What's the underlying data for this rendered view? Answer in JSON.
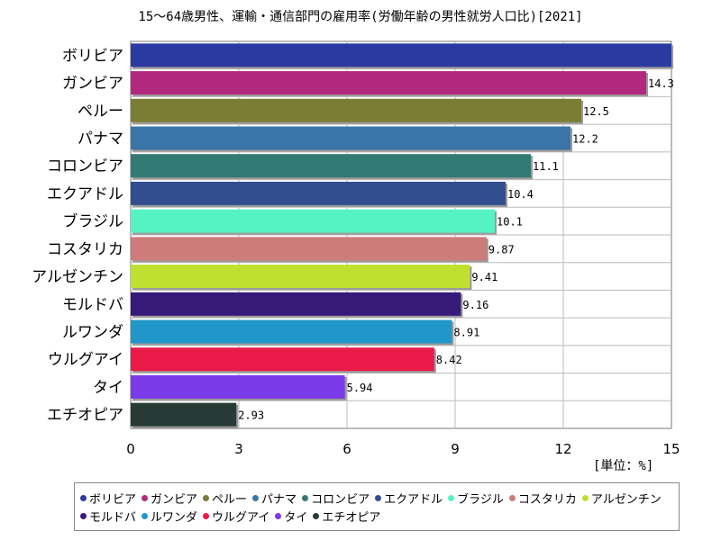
{
  "chart_data": {
    "type": "bar",
    "orientation": "horizontal",
    "title": "15～64歳男性、運輸・通信部門の雇用率(労働年齢の男性就労人口比)[2021]",
    "unit_label": "[単位：%]",
    "xlim": [
      0,
      15
    ],
    "x_ticks": [
      "0",
      "3",
      "6",
      "9",
      "12",
      "15"
    ],
    "grid": true,
    "legend_position": "bottom",
    "categories": [
      "ボリビア",
      "ガンビア",
      "ペルー",
      "パナマ",
      "コロンビア",
      "エクアドル",
      "ブラジル",
      "コスタリカ",
      "アルゼンチン",
      "モルドバ",
      "ルワンダ",
      "ウルグアイ",
      "タイ",
      "エチオピア"
    ],
    "values": [
      15.0,
      14.3,
      12.5,
      12.2,
      11.1,
      10.4,
      10.1,
      9.87,
      9.41,
      9.16,
      8.91,
      8.42,
      5.94,
      2.93
    ],
    "value_labels": [
      "",
      "14.3",
      "12.5",
      "12.2",
      "11.1",
      "10.4",
      "10.1",
      "9.87",
      "9.41",
      "9.16",
      "8.91",
      "8.42",
      "5.94",
      "2.93"
    ],
    "colors": [
      "#2b3aa0",
      "#b2287e",
      "#7b7d35",
      "#3a75a8",
      "#337a74",
      "#334e8e",
      "#55f3c3",
      "#cd7b7b",
      "#c0e030",
      "#361a7a",
      "#2196c8",
      "#ea1a48",
      "#7a3aea",
      "#273a36"
    ]
  }
}
